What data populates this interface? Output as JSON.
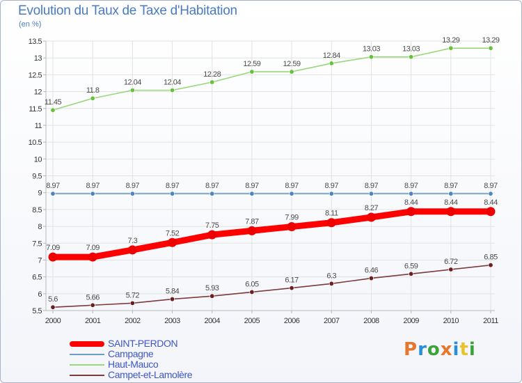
{
  "header": {
    "title": "Evolution du Taux de Taxe d'Habitation",
    "unit": "(en %)"
  },
  "colors": {
    "axis": "#b8b8b8",
    "grid": "#e2e2e2",
    "tick_text": "#333333",
    "value_text": "#4a4a4a"
  },
  "chart_data": {
    "type": "line",
    "title": "Evolution du Taux de Taxe d'Habitation",
    "ylabel": "(en %)",
    "xlabel": "",
    "x": [
      "2000",
      "2001",
      "2002",
      "2003",
      "2004",
      "2005",
      "2006",
      "2007",
      "2008",
      "2009",
      "2010",
      "2011"
    ],
    "ylim": [
      5.5,
      13.5
    ],
    "yticks": [
      "5.5",
      "6",
      "6.5",
      "7",
      "7.5",
      "8",
      "8.5",
      "9",
      "9.5",
      "10",
      "10.5",
      "11",
      "11.5",
      "12",
      "12.5",
      "13",
      "13.5"
    ],
    "grid": true,
    "legend_position": "bottom-left",
    "series": [
      {
        "name": "SAINT-PERDON",
        "color": "#ff0000",
        "marker_color": "#ee0000",
        "emphasis": true,
        "values": [
          7.09,
          7.09,
          7.3,
          7.52,
          7.75,
          7.87,
          7.99,
          8.11,
          8.27,
          8.44,
          8.44,
          8.44
        ],
        "labels": [
          "7.09",
          "7.09",
          "7.3",
          "7.52",
          "7.75",
          "7.87",
          "7.99",
          "8.11",
          "8.27",
          "8.44",
          "8.44",
          "8.44"
        ]
      },
      {
        "name": "Campagne",
        "color": "#6a9ec9",
        "marker_color": "#4d86bd",
        "emphasis": false,
        "values": [
          8.97,
          8.97,
          8.97,
          8.97,
          8.97,
          8.97,
          8.97,
          8.97,
          8.97,
          8.97,
          8.97,
          8.97
        ],
        "labels": [
          "8.97",
          "8.97",
          "8.97",
          "8.97",
          "8.97",
          "8.97",
          "8.97",
          "8.97",
          "8.97",
          "8.97",
          "8.97",
          "8.97"
        ]
      },
      {
        "name": "Haut-Mauco",
        "color": "#9ad67a",
        "marker_color": "#66c23a",
        "emphasis": false,
        "values": [
          11.45,
          11.8,
          12.04,
          12.04,
          12.28,
          12.59,
          12.59,
          12.84,
          13.03,
          13.03,
          13.29,
          13.29
        ],
        "labels": [
          "11.45",
          "11.8",
          "12.04",
          "12.04",
          "12.28",
          "12.59",
          "12.59",
          "12.84",
          "13.03",
          "13.03",
          "13.29",
          "13.29"
        ]
      },
      {
        "name": "Campet-et-Lamolère",
        "color": "#7b3b3b",
        "marker_color": "#6b1f1f",
        "emphasis": false,
        "values": [
          5.6,
          5.66,
          5.72,
          5.84,
          5.93,
          6.05,
          6.17,
          6.3,
          6.46,
          6.59,
          6.72,
          6.85
        ],
        "labels": [
          "5.6",
          "5.66",
          "5.72",
          "5.84",
          "5.93",
          "6.05",
          "6.17",
          "6.3",
          "6.46",
          "6.59",
          "6.72",
          "6.85"
        ]
      }
    ]
  },
  "legend": {
    "items": [
      {
        "label": "SAINT-PERDON",
        "color": "#ff0000",
        "thick": true
      },
      {
        "label": "Campagne",
        "color": "#6a9ec9",
        "thick": false
      },
      {
        "label": "Haut-Mauco",
        "color": "#9ad67a",
        "thick": false
      },
      {
        "label": "Campet-et-Lamolère",
        "color": "#7b3b3b",
        "thick": false
      }
    ]
  },
  "logo": {
    "text": "Proxiti",
    "letters": [
      {
        "ch": "P",
        "color": "#e8772b"
      },
      {
        "ch": "r",
        "color": "#2a8fd6"
      },
      {
        "ch": "o",
        "color": "#3ca33c"
      },
      {
        "ch": "x",
        "color": "#e8772b"
      },
      {
        "ch": "i",
        "color": "#2a8fd6"
      },
      {
        "ch": "t",
        "color": "#e8c32b"
      },
      {
        "ch": "i",
        "color": "#3ca33c"
      }
    ]
  }
}
